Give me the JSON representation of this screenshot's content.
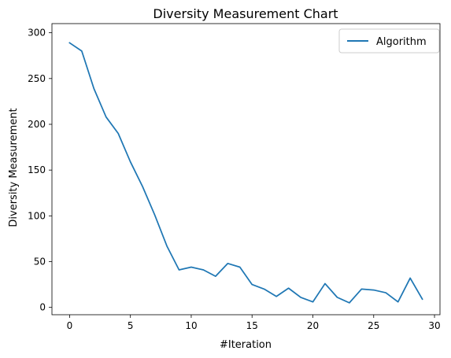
{
  "chart_data": {
    "type": "line",
    "title": "Diversity Measurement Chart",
    "xlabel": "#Iteration",
    "ylabel": "Diversity Measurement",
    "xlim": [
      -1.45,
      30.45
    ],
    "ylim": [
      -8,
      310
    ],
    "x_ticks": [
      0,
      5,
      10,
      15,
      20,
      25,
      30
    ],
    "y_ticks": [
      0,
      50,
      100,
      150,
      200,
      250,
      300
    ],
    "grid": false,
    "legend_position": "top-right",
    "series": [
      {
        "name": "Algorithm",
        "color": "#1f77b4",
        "x": [
          0,
          1,
          2,
          3,
          4,
          5,
          6,
          7,
          8,
          9,
          10,
          11,
          12,
          13,
          14,
          15,
          16,
          17,
          18,
          19,
          20,
          21,
          22,
          23,
          24,
          25,
          26,
          27,
          28,
          29
        ],
        "y": [
          289,
          280,
          239,
          208,
          190,
          159,
          132,
          101,
          67,
          41,
          44,
          41,
          34,
          48,
          44,
          25,
          20,
          12,
          21,
          11,
          6,
          26,
          11,
          5,
          20,
          19,
          16,
          6,
          32,
          9
        ]
      }
    ]
  }
}
